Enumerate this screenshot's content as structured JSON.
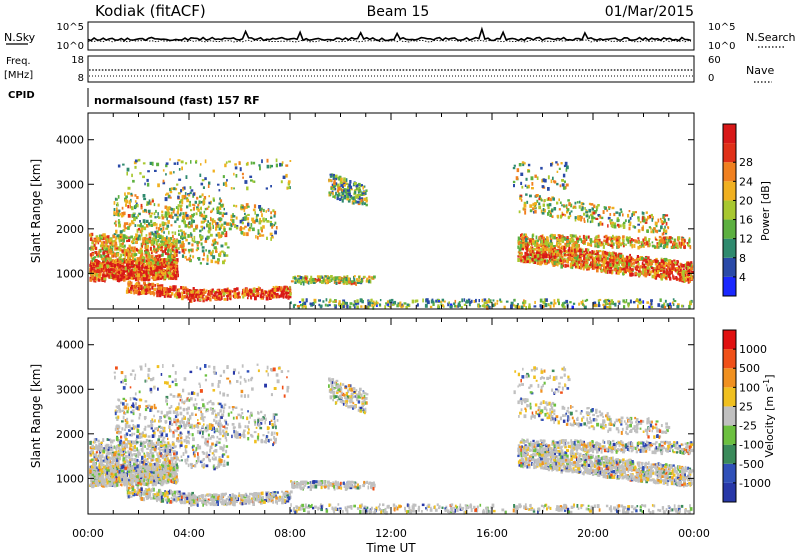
{
  "header": {
    "station": "Kodiak (fitACF)",
    "beam": "Beam 15",
    "date": "01/Mar/2015"
  },
  "panels": {
    "nsky": {
      "left_label": "N.Sky",
      "left_ticks": [
        "10^5",
        "10^0"
      ],
      "right_ticks": [
        "10^5",
        "10^0"
      ],
      "right_label": "N.Search"
    },
    "freq": {
      "left_label_1": "Freq.",
      "left_label_2": "[MHz]",
      "left_ticks": [
        "18",
        "8"
      ],
      "right_ticks": [
        "60",
        "0"
      ],
      "right_label": "Nave"
    },
    "cpid": {
      "label": "CPID",
      "text": "normalsound (fast) 157 RF"
    }
  },
  "chart_data": [
    {
      "type": "heatmap",
      "name": "power",
      "ylabel": "Slant Range [km]",
      "xlabel": "",
      "ylim": [
        200,
        4600
      ],
      "y_ticks": [
        1000,
        2000,
        3000,
        4000
      ],
      "colorbar": {
        "label": "Power [dB]",
        "tick_labels": [
          "4",
          "8",
          "12",
          "16",
          "20",
          "24",
          "28"
        ],
        "colors": [
          "#1a28ff",
          "#2a4aa8",
          "#2f8a6e",
          "#5cb040",
          "#a8c830",
          "#f0b020",
          "#f08020",
          "#e03018",
          "#d81818"
        ]
      }
    },
    {
      "type": "heatmap",
      "name": "velocity",
      "ylabel": "Slant Range [km]",
      "xlabel": "Time UT",
      "ylim": [
        200,
        4600
      ],
      "y_ticks": [
        1000,
        2000,
        3000,
        4000
      ],
      "x_tick_labels": [
        "00:00",
        "04:00",
        "08:00",
        "12:00",
        "16:00",
        "20:00",
        "00:00"
      ],
      "colorbar": {
        "label": "Velocity [m s^-1]",
        "tick_labels": [
          "1000",
          "500",
          "100",
          "25",
          "-25",
          "-100",
          "-500",
          "-1000"
        ],
        "colors": [
          "#2838a8",
          "#3050b8",
          "#3a8a5a",
          "#6cc040",
          "#c0c0c0",
          "#f0c020",
          "#f09020",
          "#f05018",
          "#e01010"
        ]
      }
    }
  ]
}
